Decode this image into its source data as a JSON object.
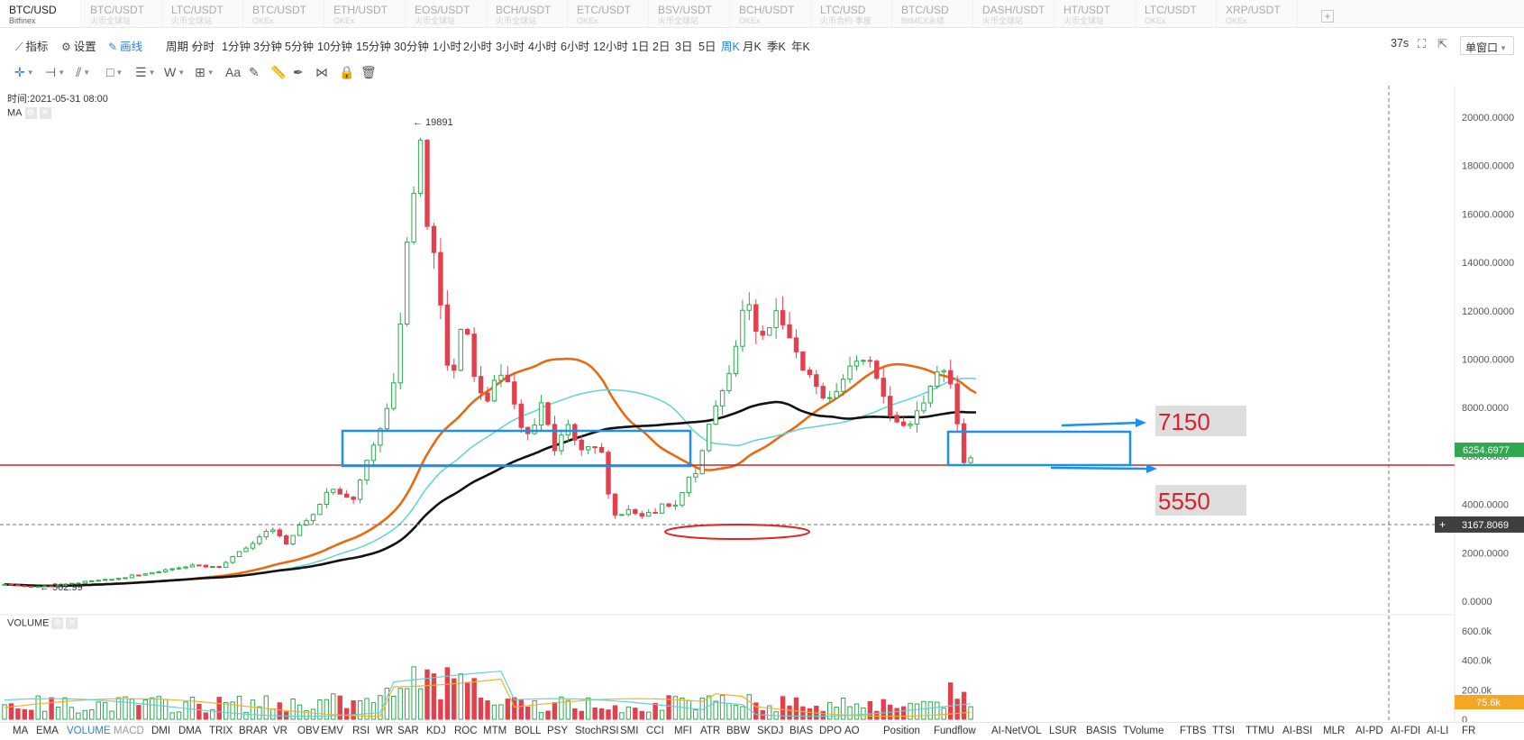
{
  "tabs": [
    {
      "symbol": "BTC/USD",
      "exchange": "Bitfinex",
      "active": true
    },
    {
      "symbol": "BTC/USDT",
      "exchange": "火币全球站"
    },
    {
      "symbol": "LTC/USDT",
      "exchange": "火币全球站"
    },
    {
      "symbol": "BTC/USDT",
      "exchange": "OKEx"
    },
    {
      "symbol": "ETH/USDT",
      "exchange": "OKEx"
    },
    {
      "symbol": "EOS/USDT",
      "exchange": "火币全球站"
    },
    {
      "symbol": "BCH/USDT",
      "exchange": "火币全球站"
    },
    {
      "symbol": "ETC/USDT",
      "exchange": "OKEx"
    },
    {
      "symbol": "BSV/USDT",
      "exchange": "火币全球站"
    },
    {
      "symbol": "BCH/USDT",
      "exchange": "OKEx"
    },
    {
      "symbol": "LTC/USD",
      "exchange": "火币合约·季度"
    },
    {
      "symbol": "BTC/USD",
      "exchange": "BitMEX永续"
    },
    {
      "symbol": "DASH/USDT",
      "exchange": "火币全球站"
    },
    {
      "symbol": "HT/USDT",
      "exchange": "火币全球站"
    },
    {
      "symbol": "LTC/USDT",
      "exchange": "OKEx"
    },
    {
      "symbol": "XRP/USDT",
      "exchange": "OKEx"
    }
  ],
  "tab_add": "+",
  "toolbar": {
    "indicator": "指标",
    "settings": "设置",
    "draw": "画线",
    "period_label": "周期",
    "periods": [
      "分时",
      "1分钟",
      "3分钟",
      "5分钟",
      "10分钟",
      "15分钟",
      "30分钟",
      "1小时",
      "2小时",
      "3小时",
      "4小时",
      "6小时",
      "12小时",
      "1日",
      "2日",
      "3日",
      "5日",
      "周K",
      "月K",
      "季K",
      "年K"
    ],
    "active_period": "周K",
    "refresh": "37s",
    "window": "单窗口"
  },
  "draw_tools": [
    {
      "name": "crosshair-tool-icon",
      "glyph": "✛",
      "caret": true,
      "active": true
    },
    {
      "name": "horizontal-line-tool-icon",
      "glyph": "⊣",
      "caret": true
    },
    {
      "name": "trend-line-tool-icon",
      "glyph": "⫽",
      "caret": true
    },
    {
      "name": "rectangle-tool-icon",
      "glyph": "□",
      "caret": true
    },
    {
      "name": "parallel-channel-tool-icon",
      "glyph": "☰",
      "caret": true
    },
    {
      "name": "wave-tool-icon",
      "glyph": "W",
      "caret": true
    },
    {
      "name": "measure-tool-icon",
      "glyph": "⊞",
      "caret": true
    },
    {
      "name": "text-tool-icon",
      "glyph": "Aa"
    },
    {
      "name": "brush-tool-icon",
      "glyph": "✎"
    },
    {
      "name": "ruler-tool-icon",
      "glyph": "📏"
    },
    {
      "name": "pen-tool-icon",
      "glyph": "✒"
    },
    {
      "name": "sequence-tool-icon",
      "glyph": "⋈"
    },
    {
      "name": "lock-tool-icon",
      "glyph": "🔒"
    },
    {
      "name": "trash-tool-icon",
      "glyph": "🗑"
    }
  ],
  "info": {
    "time": "时间:2021-05-31 08:00",
    "ma_label": "MA",
    "volume_label": "VOLUME"
  },
  "chart_data": {
    "type": "candlestick",
    "symbol": "BTC/USD",
    "interval": "周K",
    "y_axis_ticks": [
      "20000.0000",
      "18000.0000",
      "16000.0000",
      "14000.0000",
      "12000.0000",
      "10000.0000",
      "8000.0000",
      "6000.0000",
      "4000.0000",
      "2000.0000",
      "0.0000"
    ],
    "ylim": [
      0,
      20000
    ],
    "high_label": "19891",
    "low_label": "562.99",
    "last_price": "6254.6977",
    "crosshair_price": "3167.8069",
    "annotations": [
      {
        "text": "7150",
        "value": 7150
      },
      {
        "text": "5550",
        "value": 5550
      }
    ],
    "moving_averages": [
      {
        "color": "#e86a10"
      },
      {
        "color": "#5fd4d2"
      },
      {
        "color": "#111111"
      }
    ],
    "candle_colors": {
      "up": "#2fa84f",
      "down": "#e2404d"
    },
    "volume_axis_ticks": [
      "600.0k",
      "400.0k",
      "200.0k",
      "0"
    ],
    "volume_last": "75.6k",
    "volume_ylim": [
      0,
      700
    ]
  },
  "indicators": [
    {
      "label": "MA"
    },
    {
      "label": "EMA"
    },
    {
      "label": "VOLUME",
      "state": "active"
    },
    {
      "label": "MACD",
      "state": "muted"
    },
    {
      "label": "DMI"
    },
    {
      "label": "DMA"
    },
    {
      "label": "TRIX"
    },
    {
      "label": "BRAR"
    },
    {
      "label": "VR"
    },
    {
      "label": "OBV"
    },
    {
      "label": "EMV"
    },
    {
      "label": "RSI"
    },
    {
      "label": "WR"
    },
    {
      "label": "SAR"
    },
    {
      "label": "KDJ"
    },
    {
      "label": "ROC"
    },
    {
      "label": "MTM"
    },
    {
      "label": "BOLL"
    },
    {
      "label": "PSY"
    },
    {
      "label": "StochRSI"
    },
    {
      "label": "SMI"
    },
    {
      "label": "CCI"
    },
    {
      "label": "MFI"
    },
    {
      "label": "ATR"
    },
    {
      "label": "BBW"
    },
    {
      "label": "SKDJ"
    },
    {
      "label": "BIAS"
    },
    {
      "label": "DPO"
    },
    {
      "label": "AO"
    },
    {
      "label": "Position"
    },
    {
      "label": "Fundflow"
    },
    {
      "label": "AI-NetVOL"
    },
    {
      "label": "LSUR"
    },
    {
      "label": "BASIS"
    },
    {
      "label": "TVolume"
    },
    {
      "label": "FTBS"
    },
    {
      "label": "TTSI"
    },
    {
      "label": "TTMU"
    },
    {
      "label": "AI-BSI"
    },
    {
      "label": "MLR"
    },
    {
      "label": "AI-PD"
    },
    {
      "label": "AI-FDI"
    },
    {
      "label": "AI-LI"
    },
    {
      "label": "FR"
    }
  ],
  "colors": {
    "accent": "#2e7ce6",
    "up": "#2fa84f",
    "down": "#e2404d",
    "box": "#1d8ff0",
    "support_line": "#c8282c"
  }
}
